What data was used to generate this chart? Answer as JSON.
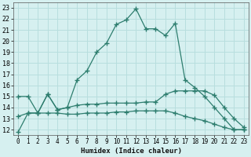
{
  "xlabel": "Humidex (Indice chaleur)",
  "bg_color": "#d6f0f0",
  "line_color": "#2d7d6e",
  "grid_color": "#b8dede",
  "xlim": [
    -0.5,
    23.5
  ],
  "ylim": [
    11.5,
    23.5
  ],
  "xticks": [
    0,
    1,
    2,
    3,
    4,
    5,
    6,
    7,
    8,
    9,
    10,
    11,
    12,
    13,
    14,
    15,
    16,
    17,
    18,
    19,
    20,
    21,
    22,
    23
  ],
  "yticks": [
    12,
    13,
    14,
    15,
    16,
    17,
    18,
    19,
    20,
    21,
    22,
    23
  ],
  "line1_x": [
    0,
    1,
    2,
    3,
    4,
    5,
    6,
    7,
    8,
    9,
    10,
    11,
    12,
    13,
    14,
    15,
    16,
    17,
    18,
    19,
    20,
    21,
    22,
    23
  ],
  "line1_y": [
    11.8,
    13.5,
    13.5,
    15.2,
    13.8,
    14.0,
    16.5,
    17.3,
    19.0,
    19.8,
    21.5,
    21.9,
    22.9,
    21.1,
    21.1,
    20.5,
    21.6,
    16.5,
    15.8,
    15.0,
    14.0,
    13.0,
    12.0,
    12.0
  ],
  "line2_x": [
    0,
    1,
    2,
    3,
    4,
    5,
    6,
    7,
    8,
    9,
    10,
    11,
    12,
    13,
    14,
    15,
    16,
    17,
    18,
    19,
    20,
    21,
    22,
    23
  ],
  "line2_y": [
    13.2,
    13.5,
    13.5,
    15.2,
    13.8,
    14.0,
    14.2,
    14.3,
    14.3,
    14.4,
    14.4,
    14.4,
    14.4,
    14.5,
    14.5,
    15.2,
    15.5,
    15.5,
    15.5,
    15.5,
    15.1,
    14.0,
    13.0,
    12.2
  ],
  "line3_x": [
    0,
    1,
    2,
    3,
    4,
    5,
    6,
    7,
    8,
    9,
    10,
    11,
    12,
    13,
    14,
    15,
    16,
    17,
    18,
    19,
    20,
    21,
    22,
    23
  ],
  "line3_y": [
    15.0,
    15.0,
    13.5,
    13.5,
    13.5,
    13.4,
    13.4,
    13.5,
    13.5,
    13.5,
    13.6,
    13.6,
    13.7,
    13.7,
    13.7,
    13.7,
    13.5,
    13.2,
    13.0,
    12.8,
    12.5,
    12.2,
    12.0,
    12.0
  ]
}
